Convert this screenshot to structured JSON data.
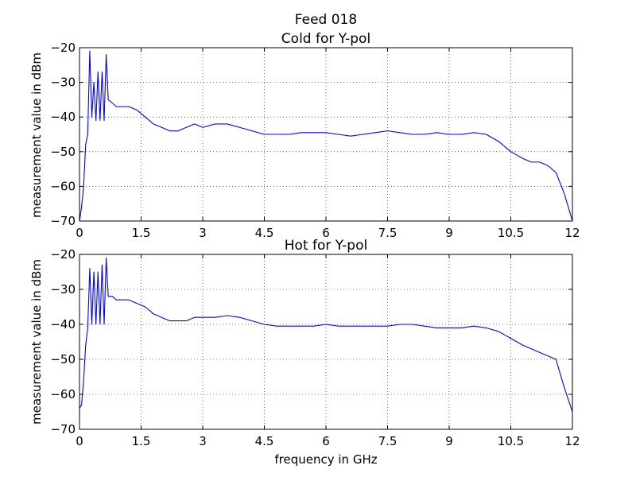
{
  "figure": {
    "suptitle": "Feed 018",
    "xlabel": "frequency in GHz"
  },
  "chart_data": [
    {
      "type": "line",
      "title": "Cold for Y-pol",
      "xlabel": "",
      "ylabel": "measurement value in dBm",
      "xlim": [
        0,
        12
      ],
      "ylim": [
        -70,
        -20
      ],
      "xticks": [
        0,
        1.5,
        3,
        4.5,
        6,
        7.5,
        9,
        10.5,
        12
      ],
      "xtick_labels": [
        "0",
        "1.5",
        "3",
        "4.5",
        "6",
        "7.5",
        "9",
        "10.5",
        "12"
      ],
      "yticks": [
        -70,
        -60,
        -50,
        -40,
        -30,
        -20
      ],
      "ytick_labels": [
        "−70",
        "−60",
        "−50",
        "−40",
        "−30",
        "−20"
      ],
      "grid": true,
      "color": "#0000ff",
      "series": [
        {
          "x": [
            0,
            0.05,
            0.1,
            0.15,
            0.2,
            0.25,
            0.3,
            0.35,
            0.4,
            0.45,
            0.5,
            0.55,
            0.6,
            0.65,
            0.7,
            0.8,
            0.9,
            1.0,
            1.2,
            1.4,
            1.6,
            1.8,
            2.0,
            2.2,
            2.4,
            2.6,
            2.8,
            3.0,
            3.3,
            3.6,
            3.9,
            4.2,
            4.5,
            4.8,
            5.1,
            5.4,
            5.7,
            6.0,
            6.3,
            6.6,
            6.9,
            7.2,
            7.5,
            7.8,
            8.1,
            8.4,
            8.7,
            9.0,
            9.3,
            9.6,
            9.9,
            10.2,
            10.5,
            10.8,
            11.0,
            11.2,
            11.4,
            11.6,
            11.8,
            12.0
          ],
          "y": [
            -70,
            -66,
            -60,
            -48,
            -45,
            -21,
            -40,
            -30,
            -41,
            -27,
            -41,
            -27,
            -41,
            -22,
            -35,
            -36,
            -37,
            -37,
            -37,
            -38,
            -40,
            -42,
            -43,
            -44,
            -44,
            -43,
            -42,
            -43,
            -42,
            -42,
            -43,
            -44,
            -45,
            -45,
            -45,
            -44.5,
            -44.5,
            -44.5,
            -45,
            -45.5,
            -45,
            -44.5,
            -44,
            -44.5,
            -45,
            -45,
            -44.5,
            -45,
            -45,
            -44.5,
            -45,
            -47,
            -50,
            -52,
            -53,
            -53,
            -54,
            -56,
            -62,
            -70
          ]
        }
      ]
    },
    {
      "type": "line",
      "title": "Hot for Y-pol",
      "xlabel": "frequency in GHz",
      "ylabel": "measurement value in dBm",
      "xlim": [
        0,
        12
      ],
      "ylim": [
        -70,
        -20
      ],
      "xticks": [
        0,
        1.5,
        3,
        4.5,
        6,
        7.5,
        9,
        10.5,
        12
      ],
      "xtick_labels": [
        "0",
        "1.5",
        "3",
        "4.5",
        "6",
        "7.5",
        "9",
        "10.5",
        "12"
      ],
      "yticks": [
        -70,
        -60,
        -50,
        -40,
        -30,
        -20
      ],
      "ytick_labels": [
        "−70",
        "−60",
        "−50",
        "−40",
        "−30",
        "−20"
      ],
      "grid": true,
      "color": "#0000ff",
      "series": [
        {
          "x": [
            0,
            0.05,
            0.1,
            0.15,
            0.2,
            0.25,
            0.3,
            0.35,
            0.4,
            0.45,
            0.5,
            0.55,
            0.6,
            0.65,
            0.7,
            0.8,
            0.9,
            1.0,
            1.2,
            1.4,
            1.6,
            1.8,
            2.0,
            2.2,
            2.4,
            2.6,
            2.8,
            3.0,
            3.3,
            3.6,
            3.9,
            4.2,
            4.5,
            4.8,
            5.1,
            5.4,
            5.7,
            6.0,
            6.3,
            6.6,
            6.9,
            7.2,
            7.5,
            7.8,
            8.1,
            8.4,
            8.7,
            9.0,
            9.3,
            9.6,
            9.9,
            10.2,
            10.5,
            10.8,
            11.0,
            11.2,
            11.4,
            11.6,
            11.8,
            12.0
          ],
          "y": [
            -64,
            -63,
            -56,
            -46,
            -41,
            -24,
            -40,
            -25,
            -40,
            -25,
            -40,
            -23,
            -40,
            -21,
            -32,
            -32,
            -33,
            -33,
            -33,
            -34,
            -35,
            -37,
            -38,
            -39,
            -39,
            -39,
            -38,
            -38,
            -38,
            -37.5,
            -38,
            -39,
            -40,
            -40.5,
            -40.5,
            -40.5,
            -40.5,
            -40,
            -40.5,
            -40.5,
            -40.5,
            -40.5,
            -40.5,
            -40,
            -40,
            -40.5,
            -41,
            -41,
            -41,
            -40.5,
            -41,
            -42,
            -44,
            -46,
            -47,
            -48,
            -49,
            -50,
            -58,
            -65
          ]
        }
      ]
    }
  ]
}
